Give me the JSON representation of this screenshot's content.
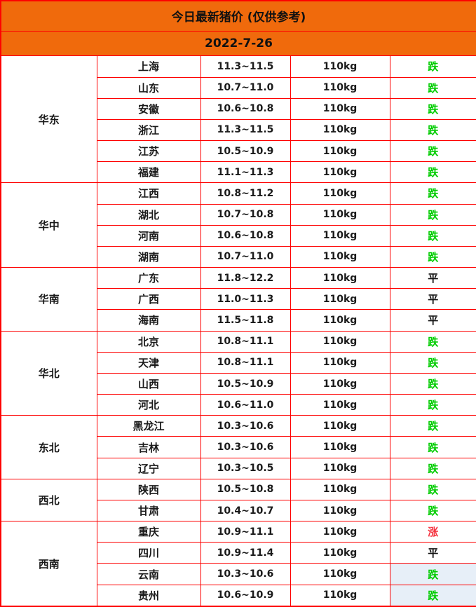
{
  "header": {
    "title": "今日最新猪价 (仅供参考)",
    "date": "2022-7-26"
  },
  "colors": {
    "header_bg": "#f06a0c",
    "border": "#fe0000",
    "trend": {
      "down": "#00cc00",
      "flat": "#111111",
      "up": "#f5333f"
    },
    "highlight_bg": "#e7eff8",
    "text": "#1a1a1a"
  },
  "regions": [
    {
      "name": "华东",
      "rows": [
        {
          "province": "上海",
          "price": "11.3~11.5",
          "weight": "110kg",
          "trend": "跌",
          "trend_type": "down",
          "highlight": false
        },
        {
          "province": "山东",
          "price": "10.7~11.0",
          "weight": "110kg",
          "trend": "跌",
          "trend_type": "down",
          "highlight": false
        },
        {
          "province": "安徽",
          "price": "10.6~10.8",
          "weight": "110kg",
          "trend": "跌",
          "trend_type": "down",
          "highlight": false
        },
        {
          "province": "浙江",
          "price": "11.3~11.5",
          "weight": "110kg",
          "trend": "跌",
          "trend_type": "down",
          "highlight": false
        },
        {
          "province": "江苏",
          "price": "10.5~10.9",
          "weight": "110kg",
          "trend": "跌",
          "trend_type": "down",
          "highlight": false
        },
        {
          "province": "福建",
          "price": "11.1~11.3",
          "weight": "110kg",
          "trend": "跌",
          "trend_type": "down",
          "highlight": false
        }
      ]
    },
    {
      "name": "华中",
      "rows": [
        {
          "province": "江西",
          "price": "10.8~11.2",
          "weight": "110kg",
          "trend": "跌",
          "trend_type": "down",
          "highlight": false
        },
        {
          "province": "湖北",
          "price": "10.7~10.8",
          "weight": "110kg",
          "trend": "跌",
          "trend_type": "down",
          "highlight": false
        },
        {
          "province": "河南",
          "price": "10.6~10.8",
          "weight": "110kg",
          "trend": "跌",
          "trend_type": "down",
          "highlight": false
        },
        {
          "province": "湖南",
          "price": "10.7~11.0",
          "weight": "110kg",
          "trend": "跌",
          "trend_type": "down",
          "highlight": false
        }
      ]
    },
    {
      "name": "华南",
      "rows": [
        {
          "province": "广东",
          "price": "11.8~12.2",
          "weight": "110kg",
          "trend": "平",
          "trend_type": "flat",
          "highlight": false
        },
        {
          "province": "广西",
          "price": "11.0~11.3",
          "weight": "110kg",
          "trend": "平",
          "trend_type": "flat",
          "highlight": false
        },
        {
          "province": "海南",
          "price": "11.5~11.8",
          "weight": "110kg",
          "trend": "平",
          "trend_type": "flat",
          "highlight": false
        }
      ]
    },
    {
      "name": "华北",
      "rows": [
        {
          "province": "北京",
          "price": "10.8~11.1",
          "weight": "110kg",
          "trend": "跌",
          "trend_type": "down",
          "highlight": false
        },
        {
          "province": "天津",
          "price": "10.8~11.1",
          "weight": "110kg",
          "trend": "跌",
          "trend_type": "down",
          "highlight": false
        },
        {
          "province": "山西",
          "price": "10.5~10.9",
          "weight": "110kg",
          "trend": "跌",
          "trend_type": "down",
          "highlight": false
        },
        {
          "province": "河北",
          "price": "10.6~11.0",
          "weight": "110kg",
          "trend": "跌",
          "trend_type": "down",
          "highlight": false
        }
      ]
    },
    {
      "name": "东北",
      "rows": [
        {
          "province": "黑龙江",
          "price": "10.3~10.6",
          "weight": "110kg",
          "trend": "跌",
          "trend_type": "down",
          "highlight": false
        },
        {
          "province": "吉林",
          "price": "10.3~10.6",
          "weight": "110kg",
          "trend": "跌",
          "trend_type": "down",
          "highlight": false
        },
        {
          "province": "辽宁",
          "price": "10.3~10.5",
          "weight": "110kg",
          "trend": "跌",
          "trend_type": "down",
          "highlight": false
        }
      ]
    },
    {
      "name": "西北",
      "rows": [
        {
          "province": "陕西",
          "price": "10.5~10.8",
          "weight": "110kg",
          "trend": "跌",
          "trend_type": "down",
          "highlight": false
        },
        {
          "province": "甘肃",
          "price": "10.4~10.7",
          "weight": "110kg",
          "trend": "跌",
          "trend_type": "down",
          "highlight": false
        }
      ]
    },
    {
      "name": "西南",
      "rows": [
        {
          "province": "重庆",
          "price": "10.9~11.1",
          "weight": "110kg",
          "trend": "涨",
          "trend_type": "up",
          "highlight": false
        },
        {
          "province": "四川",
          "price": "10.9~11.4",
          "weight": "110kg",
          "trend": "平",
          "trend_type": "flat",
          "highlight": false
        },
        {
          "province": "云南",
          "price": "10.3~10.6",
          "weight": "110kg",
          "trend": "跌",
          "trend_type": "down",
          "highlight": true
        },
        {
          "province": "贵州",
          "price": "10.6~10.9",
          "weight": "110kg",
          "trend": "跌",
          "trend_type": "down",
          "highlight": true
        }
      ]
    }
  ]
}
